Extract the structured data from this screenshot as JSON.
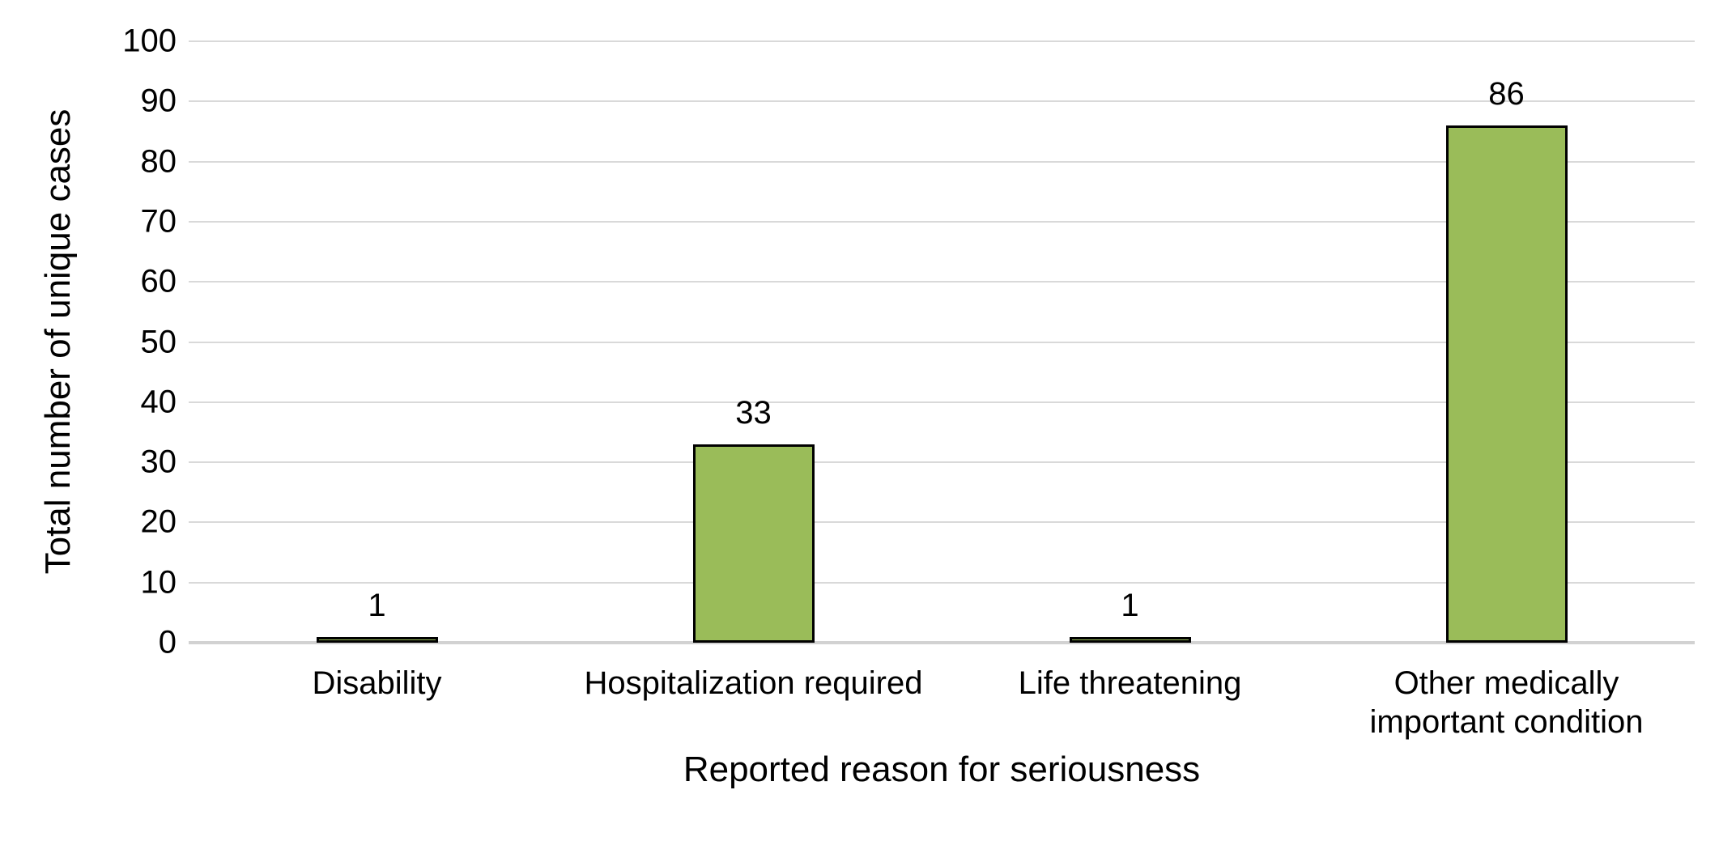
{
  "chart_data": {
    "type": "bar",
    "categories": [
      "Disability",
      "Hospitalization required",
      "Life threatening",
      "Other medically important condition"
    ],
    "category_lines": [
      [
        "Disability"
      ],
      [
        "Hospitalization required"
      ],
      [
        "Life threatening"
      ],
      [
        "Other medically",
        "important condition"
      ]
    ],
    "values": [
      1,
      33,
      1,
      86
    ],
    "data_labels": [
      "1",
      "33",
      "1",
      "86"
    ],
    "title": "",
    "xlabel": "Reported reason for seriousness",
    "ylabel": "Total number of unique cases",
    "ylim": [
      0,
      100
    ],
    "yticks": [
      "0",
      "10",
      "20",
      "30",
      "40",
      "50",
      "60",
      "70",
      "80",
      "90",
      "100"
    ],
    "grid": "horizontal",
    "legend_position": "none",
    "colors": {
      "bar_fill": "#9ABC59",
      "bar_border": "#000000",
      "gridline": "#D9D9D9",
      "axis_line": "#D2D2D2",
      "text": "#000000",
      "background": "#FFFFFF"
    }
  }
}
